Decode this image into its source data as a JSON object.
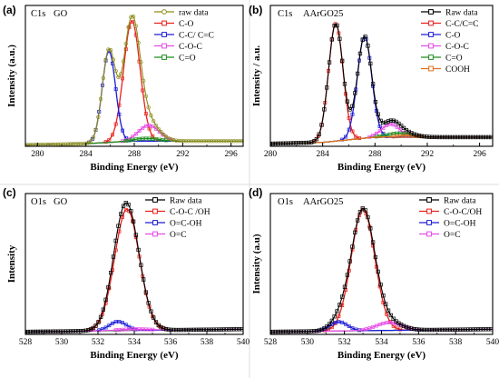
{
  "chart_data": [
    {
      "type": "line",
      "panel_label": "(a)",
      "header": [
        "C1s",
        "GO"
      ],
      "xlabel": "Binding Energy (eV)",
      "ylabel": "Intensity (a.u.)",
      "xlim": [
        279,
        297
      ],
      "ylim": [
        0,
        1.08
      ],
      "xticks": [
        280,
        284,
        288,
        292,
        296
      ],
      "background": [
        [
          279,
          0.01
        ],
        [
          284,
          0.02
        ],
        [
          288,
          0.04
        ],
        [
          292,
          0.04
        ],
        [
          297,
          0.04
        ]
      ],
      "series": [
        {
          "name": "raw data",
          "color": "#8c8c1a",
          "marker": "circle",
          "kind": "sum"
        },
        {
          "name": "C-O",
          "color": "#e8211c",
          "peak": {
            "center": 287.8,
            "height": 0.92,
            "fwhm": 1.6
          }
        },
        {
          "name": "C-C/ C=C",
          "color": "#1c1cd6",
          "peak": {
            "center": 285.9,
            "height": 0.7,
            "fwhm": 1.3
          }
        },
        {
          "name": "C-O-C",
          "color": "#e64ae6",
          "peak": {
            "center": 289.2,
            "height": 0.12,
            "fwhm": 2.0
          }
        },
        {
          "name": "C=O",
          "color": "#1f8f1f",
          "peak": {
            "center": 289.0,
            "height": 0.02,
            "fwhm": 2.4
          }
        }
      ]
    },
    {
      "type": "line",
      "panel_label": "(b)",
      "header": [
        "C1s",
        "AArGO25"
      ],
      "xlabel": "Binding Energy (eV)",
      "ylabel": "Intensity / a.u.",
      "xlim": [
        280,
        297
      ],
      "ylim": [
        0,
        1.08
      ],
      "xticks": [
        280,
        284,
        288,
        292,
        296
      ],
      "background": [
        [
          280,
          0.02
        ],
        [
          284,
          0.03
        ],
        [
          288,
          0.07
        ],
        [
          292,
          0.07
        ],
        [
          297,
          0.07
        ]
      ],
      "series": [
        {
          "name": "Raw data",
          "color": "#000000",
          "marker": "square",
          "kind": "sum"
        },
        {
          "name": "C-C/C=C",
          "color": "#e8211c",
          "peak": {
            "center": 285.0,
            "height": 0.9,
            "fwhm": 1.3
          }
        },
        {
          "name": "C-O",
          "color": "#1c1cd6",
          "peak": {
            "center": 287.2,
            "height": 0.78,
            "fwhm": 1.3
          }
        },
        {
          "name": "C-O-C",
          "color": "#e64ae6",
          "peak": {
            "center": 289.2,
            "height": 0.1,
            "fwhm": 1.6
          }
        },
        {
          "name": "C=O",
          "color": "#1f8f1f",
          "peak": {
            "center": 289.8,
            "height": 0.03,
            "fwhm": 2.0
          }
        },
        {
          "name": "COOH",
          "color": "#e07020",
          "peak": {
            "center": 290.5,
            "height": 0.01,
            "fwhm": 2.0
          }
        }
      ]
    },
    {
      "type": "line",
      "panel_label": "(c)",
      "header": [
        "O1s",
        "GO"
      ],
      "xlabel": "Binding Energy (eV)",
      "ylabel": "Intensity",
      "xlim": [
        528,
        540
      ],
      "ylim": [
        0,
        1.08
      ],
      "xticks": [
        528,
        530,
        532,
        534,
        536,
        538,
        540
      ],
      "background": [
        [
          528,
          0.02
        ],
        [
          540,
          0.04
        ]
      ],
      "series": [
        {
          "name": "Raw data",
          "color": "#000000",
          "marker": "square",
          "kind": "sum"
        },
        {
          "name": "C-O-C /OH",
          "color": "#e8211c",
          "peak": {
            "center": 533.6,
            "height": 0.93,
            "fwhm": 1.6
          }
        },
        {
          "name": "O=C-OH",
          "color": "#1c1cd6",
          "peak": {
            "center": 533.1,
            "height": 0.07,
            "fwhm": 1.1
          }
        },
        {
          "name": "O=C",
          "color": "#e64ae6",
          "peak": {
            "center": 534.0,
            "height": 0.01,
            "fwhm": 2.0
          }
        }
      ]
    },
    {
      "type": "line",
      "panel_label": "(d)",
      "header": [
        "O1s",
        "AArGO25"
      ],
      "xlabel": "Binding Energy (eV)",
      "ylabel": "Intensity (a.u)",
      "xlim": [
        528,
        540
      ],
      "ylim": [
        0,
        1.08
      ],
      "xticks": [
        528,
        530,
        532,
        534,
        536,
        538,
        540
      ],
      "background": [
        [
          528,
          0.02
        ],
        [
          540,
          0.04
        ]
      ],
      "series": [
        {
          "name": "Raw data",
          "color": "#000000",
          "marker": "square",
          "kind": "sum"
        },
        {
          "name": "C-O-C/OH",
          "color": "#e8211c",
          "peak": {
            "center": 533.0,
            "height": 0.93,
            "fwhm": 1.5
          }
        },
        {
          "name": "O=C-OH",
          "color": "#1c1cd6",
          "peak": {
            "center": 531.7,
            "height": 0.07,
            "fwhm": 1.1
          }
        },
        {
          "name": "O=C",
          "color": "#e64ae6",
          "peak": {
            "center": 534.4,
            "height": 0.06,
            "fwhm": 1.6
          }
        }
      ]
    }
  ]
}
